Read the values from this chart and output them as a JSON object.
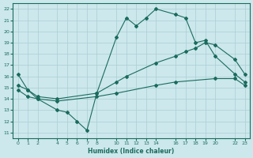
{
  "xlabel": "Humidex (Indice chaleur)",
  "bg_color": "#cce8ec",
  "grid_color": "#aacdd4",
  "line_color": "#1a6b5e",
  "xticks": [
    0,
    1,
    2,
    4,
    5,
    6,
    7,
    8,
    10,
    11,
    12,
    13,
    14,
    16,
    17,
    18,
    19,
    20,
    22,
    23
  ],
  "xtick_labels": [
    "0",
    "1",
    "2",
    "4",
    "5",
    "6",
    "7",
    "8",
    "10",
    "11",
    "12",
    "13",
    "14",
    "16",
    "17",
    "18",
    "19",
    "20",
    "22",
    "23"
  ],
  "yticks": [
    11,
    12,
    13,
    14,
    15,
    16,
    17,
    18,
    19,
    20,
    21,
    22
  ],
  "xlim": [
    -0.5,
    23.5
  ],
  "ylim": [
    10.5,
    22.5
  ],
  "line1_x": [
    0,
    1,
    2,
    4,
    5,
    6,
    7,
    8,
    10,
    11,
    12,
    13,
    14,
    16,
    17,
    18,
    19,
    20,
    22,
    23
  ],
  "line1_y": [
    16.2,
    14.8,
    14.0,
    13.0,
    12.8,
    12.0,
    11.2,
    14.5,
    19.5,
    21.2,
    20.5,
    21.2,
    22.0,
    21.5,
    21.2,
    19.0,
    19.2,
    17.8,
    16.2,
    15.5
  ],
  "line2_x": [
    0,
    1,
    2,
    4,
    8,
    10,
    11,
    14,
    16,
    17,
    18,
    19,
    20,
    22,
    23
  ],
  "line2_y": [
    15.2,
    14.8,
    14.2,
    14.0,
    14.5,
    15.5,
    16.0,
    17.2,
    17.8,
    18.2,
    18.5,
    19.0,
    18.8,
    17.5,
    16.2
  ],
  "line3_x": [
    0,
    1,
    2,
    4,
    8,
    10,
    14,
    16,
    20,
    22,
    23
  ],
  "line3_y": [
    14.8,
    14.2,
    14.0,
    13.8,
    14.2,
    14.5,
    15.2,
    15.5,
    15.8,
    15.8,
    15.2
  ]
}
